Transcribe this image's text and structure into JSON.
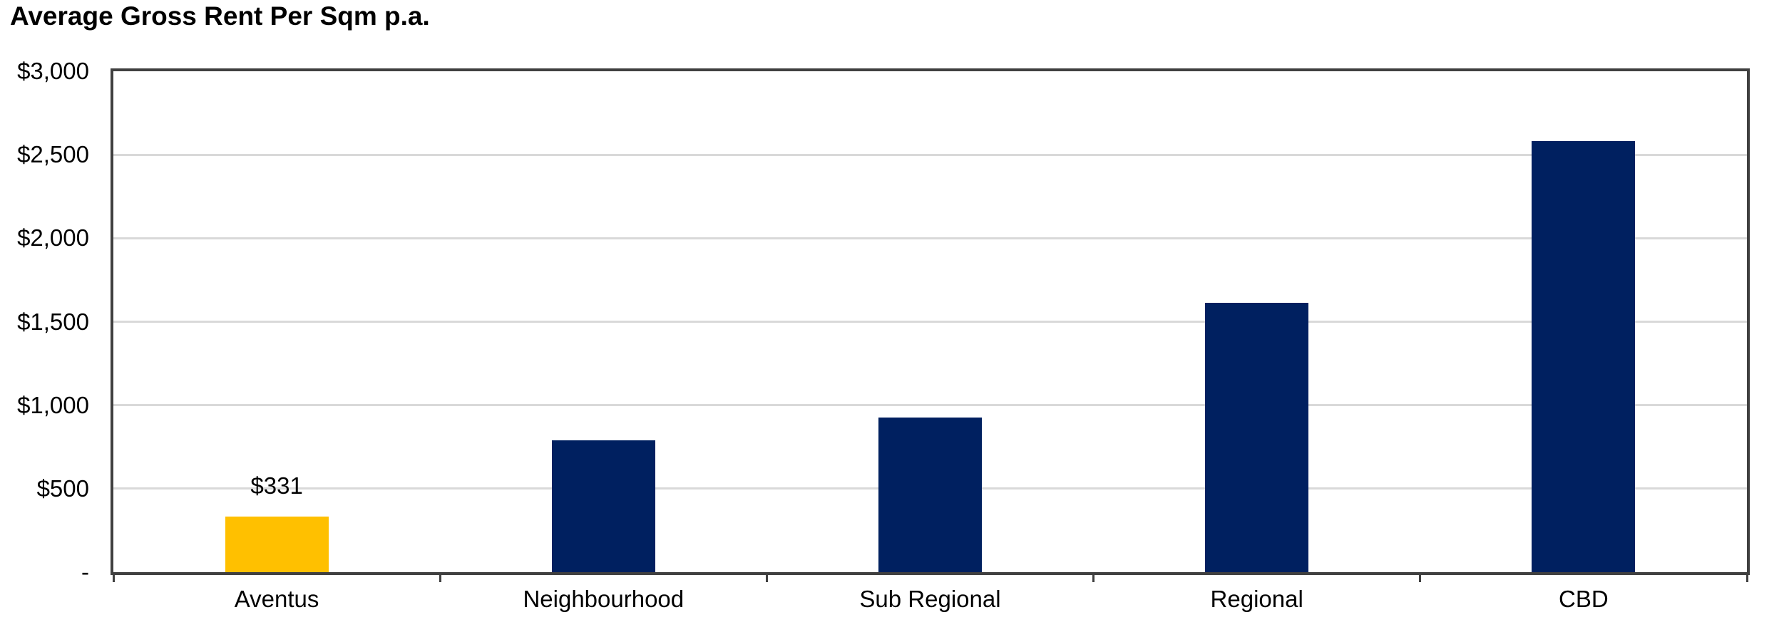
{
  "chart_data": {
    "type": "bar",
    "title": "Average Gross Rent Per Sqm p.a.",
    "xlabel": "",
    "ylabel": "",
    "categories": [
      "Aventus",
      "Neighbourhood",
      "Sub Regional",
      "Regional",
      "CBD"
    ],
    "values": [
      331,
      790,
      925,
      1615,
      2580
    ],
    "data_labels": [
      "$331",
      "",
      "",
      "",
      ""
    ],
    "bar_colors": [
      "#FFC000",
      "#002060",
      "#002060",
      "#002060",
      "#002060"
    ],
    "ylim": [
      0,
      3000
    ],
    "y_ticks": [
      {
        "value": 3000,
        "label": "$3,000"
      },
      {
        "value": 2500,
        "label": "$2,500"
      },
      {
        "value": 2000,
        "label": "$2,000"
      },
      {
        "value": 1500,
        "label": "$1,500"
      },
      {
        "value": 1000,
        "label": "$1,000"
      },
      {
        "value": 500,
        "label": "$500"
      },
      {
        "value": 0,
        "label": "-"
      }
    ],
    "grid": true,
    "legend_position": "none"
  },
  "colors": {
    "highlight_bar": "#FFC000",
    "series_bar": "#002060",
    "gridline": "#D9D9D9",
    "axis": "#404040",
    "text": "#000000",
    "background": "#FFFFFF"
  }
}
